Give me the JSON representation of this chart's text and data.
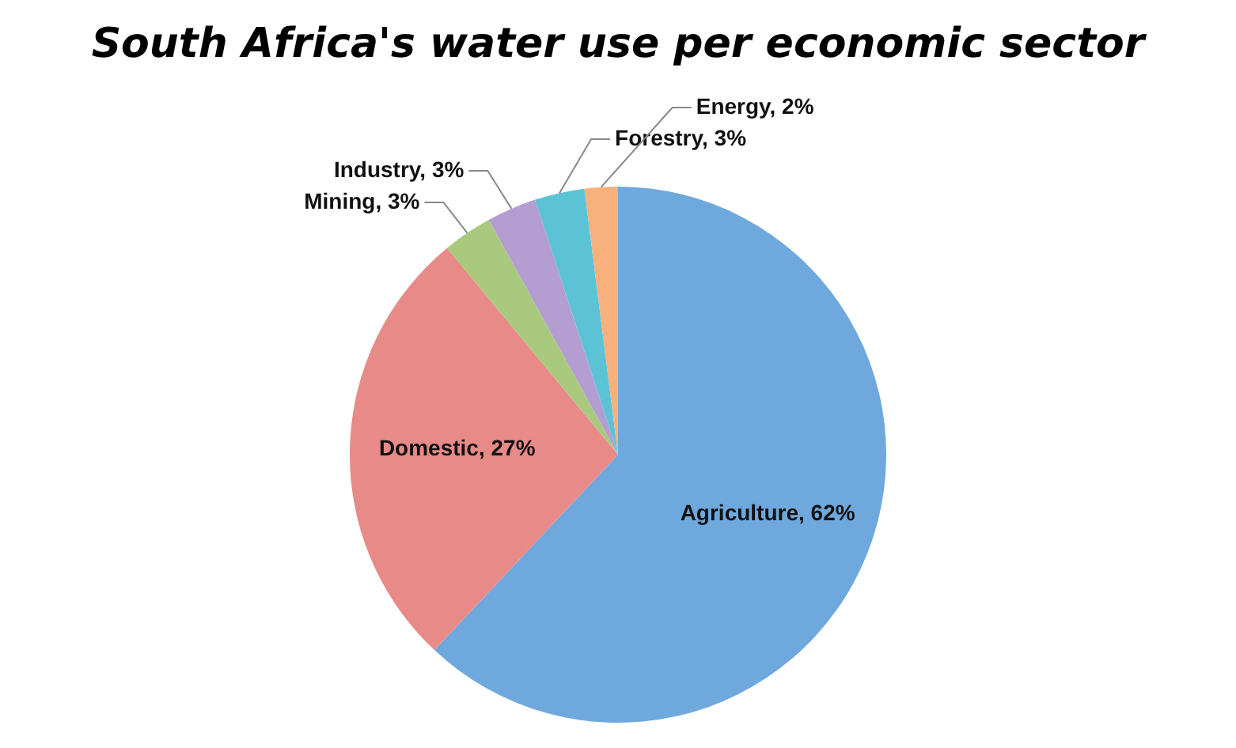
{
  "chart_data": {
    "type": "pie",
    "title": "South Africa's water use per economic sector",
    "categories": [
      "Agriculture",
      "Domestic",
      "Mining",
      "Industry",
      "Forestry",
      "Energy"
    ],
    "values": [
      62,
      27,
      3,
      3,
      3,
      2
    ],
    "value_labels": [
      "62%",
      "27%",
      "3%",
      "3%",
      "3%",
      "2%"
    ],
    "colors": [
      "#6fa8dc",
      "#e88a87",
      "#a9c97f",
      "#b39dd1",
      "#5cc3d6",
      "#f8b07c"
    ]
  }
}
